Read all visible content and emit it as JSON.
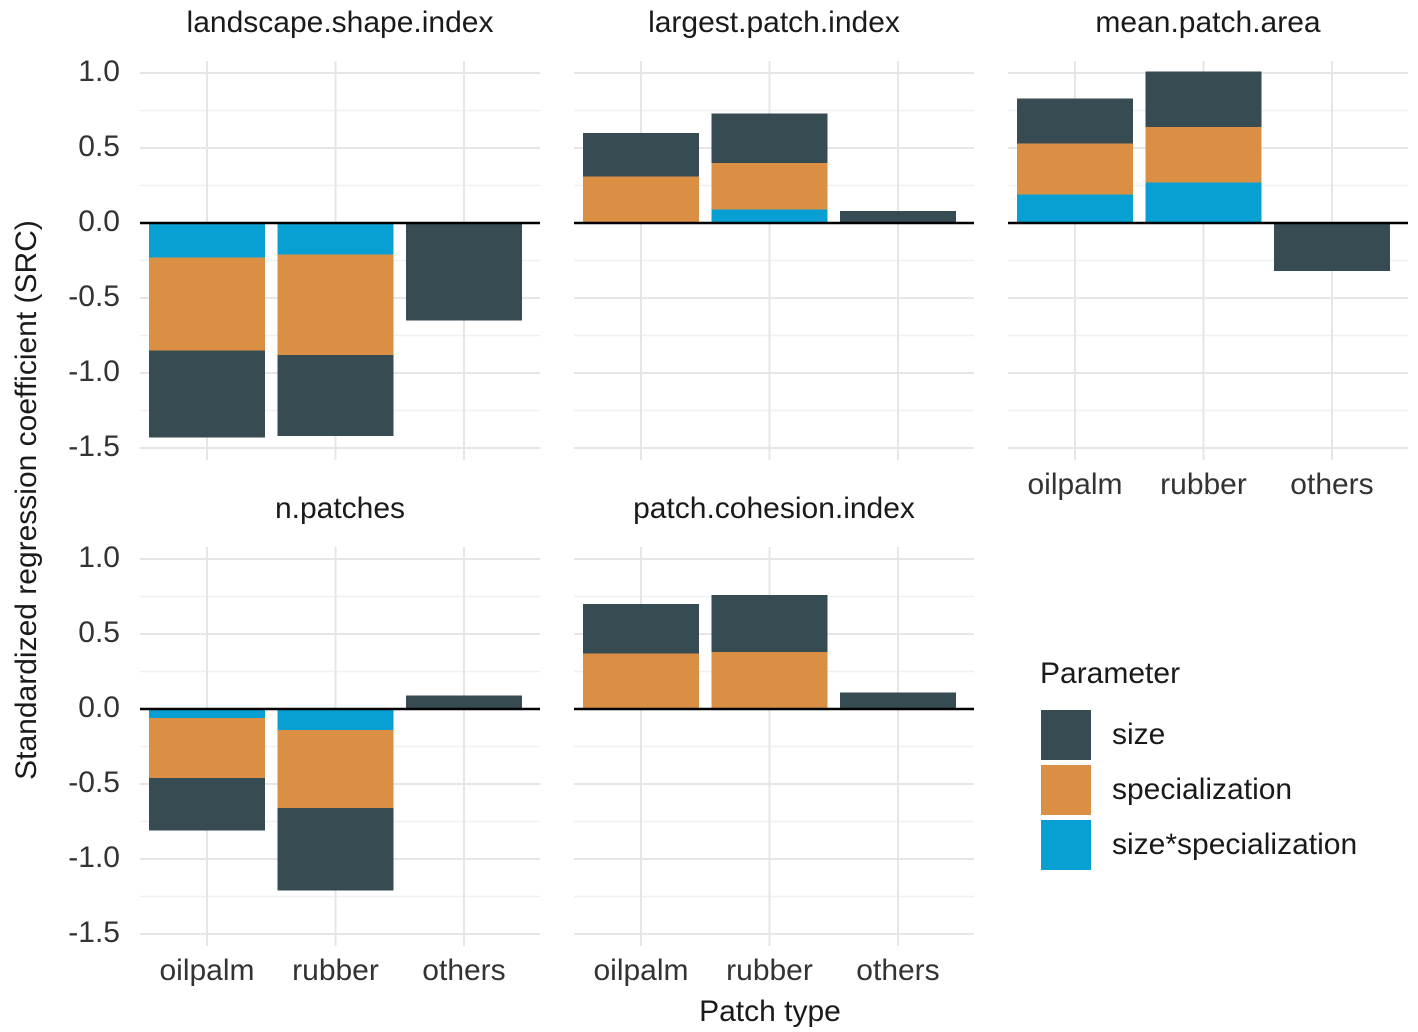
{
  "y_label": "Standardized regression coefficient (SRC)",
  "x_label": "Patch type",
  "legend_title": "Parameter",
  "chart_data": [
    {
      "type": "bar",
      "title": "landscape.shape.index",
      "categories": [
        "oilpalm",
        "rubber",
        "others"
      ],
      "series": [
        {
          "name": "size",
          "color": "#374b53",
          "values": [
            -0.58,
            -0.54,
            -0.65
          ]
        },
        {
          "name": "specialization",
          "color": "#db8f45",
          "values": [
            -0.62,
            -0.67,
            0
          ]
        },
        {
          "name": "size*specialization",
          "color": "#08a0d2",
          "values": [
            -0.23,
            -0.21,
            0
          ]
        }
      ],
      "ylim": [
        -1.5,
        1
      ],
      "yticks": [
        {
          "value": 1,
          "label": "1.0"
        },
        0.5,
        {
          "value": 0,
          "label": "0.0"
        },
        -0.5,
        {
          "value": -1,
          "label": "-1.0"
        },
        -1.5
      ],
      "grid": true
    },
    {
      "type": "bar",
      "title": "largest.patch.index",
      "categories": [
        "oilpalm",
        "rubber",
        "others"
      ],
      "series": [
        {
          "name": "size",
          "color": "#374b53",
          "values": [
            0.29,
            0.33,
            0.08
          ]
        },
        {
          "name": "specialization",
          "color": "#db8f45",
          "values": [
            0.31,
            0.31,
            0
          ]
        },
        {
          "name": "size*specialization",
          "color": "#08a0d2",
          "values": [
            0,
            0.09,
            0
          ]
        }
      ],
      "ylim": [
        -1.5,
        1
      ],
      "yticks": [
        {
          "value": 1,
          "label": "1.0"
        },
        0.5,
        {
          "value": 0,
          "label": "0.0"
        },
        -0.5,
        {
          "value": -1,
          "label": "-1.0"
        },
        -1.5
      ],
      "grid": true
    },
    {
      "type": "bar",
      "title": "mean.patch.area",
      "categories": [
        "oilpalm",
        "rubber",
        "others"
      ],
      "series": [
        {
          "name": "size",
          "color": "#374b53",
          "values": [
            0.3,
            0.37,
            -0.32
          ]
        },
        {
          "name": "specialization",
          "color": "#db8f45",
          "values": [
            0.34,
            0.37,
            0
          ]
        },
        {
          "name": "size*specialization",
          "color": "#08a0d2",
          "values": [
            0.19,
            0.27,
            0
          ]
        }
      ],
      "ylim": [
        -1.5,
        1
      ],
      "yticks": [
        {
          "value": 1,
          "label": "1.0"
        },
        0.5,
        {
          "value": 0,
          "label": "0.0"
        },
        -0.5,
        {
          "value": -1,
          "label": "-1.0"
        },
        -1.5
      ],
      "grid": true
    },
    {
      "type": "bar",
      "title": "n.patches",
      "categories": [
        "oilpalm",
        "rubber",
        "others"
      ],
      "series": [
        {
          "name": "size",
          "color": "#374b53",
          "values": [
            -0.35,
            -0.55,
            0.09
          ]
        },
        {
          "name": "specialization",
          "color": "#db8f45",
          "values": [
            -0.4,
            -0.52,
            0
          ]
        },
        {
          "name": "size*specialization",
          "color": "#08a0d2",
          "values": [
            -0.06,
            -0.14,
            0
          ]
        }
      ],
      "ylim": [
        -1.5,
        1
      ],
      "yticks": [
        {
          "value": 1,
          "label": "1.0"
        },
        0.5,
        {
          "value": 0,
          "label": "0.0"
        },
        -0.5,
        {
          "value": -1,
          "label": "-1.0"
        },
        -1.5
      ],
      "grid": true
    },
    {
      "type": "bar",
      "title": "patch.cohesion.index",
      "categories": [
        "oilpalm",
        "rubber",
        "others"
      ],
      "series": [
        {
          "name": "size",
          "color": "#374b53",
          "values": [
            0.33,
            0.38,
            0.11
          ]
        },
        {
          "name": "specialization",
          "color": "#db8f45",
          "values": [
            0.37,
            0.38,
            0
          ]
        },
        {
          "name": "size*specialization",
          "color": "#08a0d2",
          "values": [
            0,
            0,
            0
          ]
        }
      ],
      "ylim": [
        -1.5,
        1
      ],
      "yticks": [
        {
          "value": 1,
          "label": "1.0"
        },
        0.5,
        {
          "value": 0,
          "label": "0.0"
        },
        -0.5,
        {
          "value": -1,
          "label": "-1.0"
        },
        -1.5
      ],
      "grid": true
    }
  ]
}
